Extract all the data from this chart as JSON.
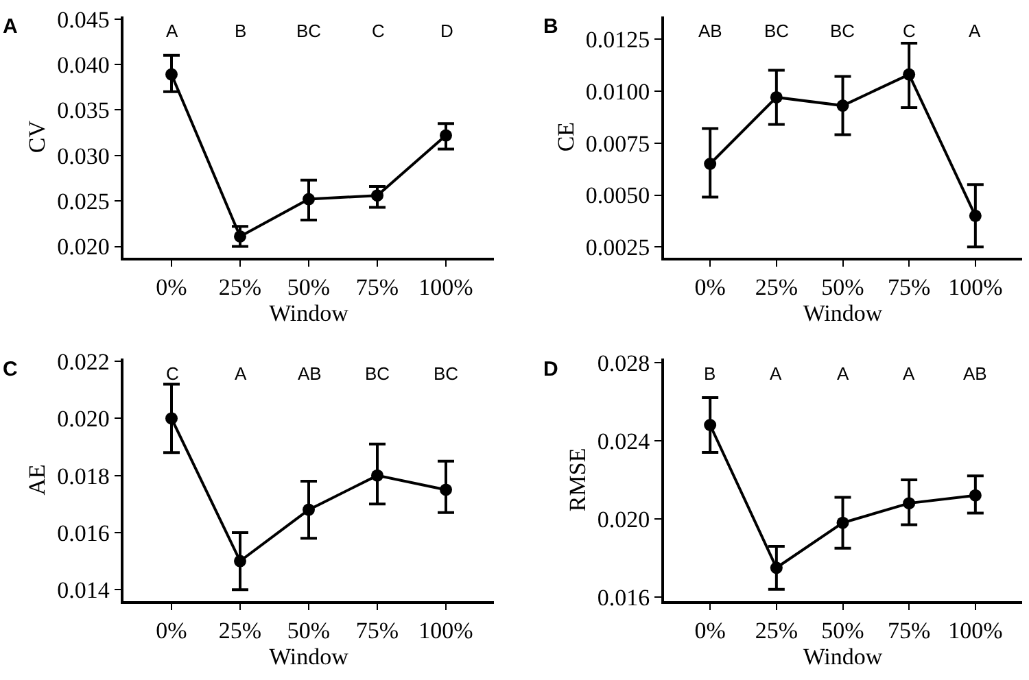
{
  "chart_data": [
    {
      "type": "line",
      "title": "A",
      "xlabel": "Window",
      "ylabel": "CV",
      "categories": [
        "0%",
        "25%",
        "50%",
        "75%",
        "100%"
      ],
      "series": [
        {
          "color": "#000000",
          "values": [
            0.0389,
            0.0211,
            0.0252,
            0.0256,
            0.0322
          ],
          "errors": [
            [
              0.037,
              0.041
            ],
            [
              0.02,
              0.0222
            ],
            [
              0.0229,
              0.0273
            ],
            [
              0.0243,
              0.0266
            ],
            [
              0.0307,
              0.0335
            ]
          ]
        }
      ],
      "ylim": [
        0.0188,
        0.0453
      ],
      "yticks": [
        {
          "value": 0.02,
          "label": "0.020"
        },
        {
          "value": 0.025,
          "label": "0.025"
        },
        {
          "value": 0.03,
          "label": "0.030"
        },
        {
          "value": 0.035,
          "label": "0.035"
        },
        {
          "value": 0.04,
          "label": "0.040"
        },
        {
          "value": 0.045,
          "label": "0.045"
        }
      ],
      "marker": "circle",
      "line_style": "solid",
      "annotations": [
        "A",
        "B",
        "BC",
        "C",
        "D"
      ]
    },
    {
      "type": "line",
      "title": "B",
      "xlabel": "Window",
      "ylabel": "CE",
      "categories": [
        "0%",
        "25%",
        "50%",
        "75%",
        "100%"
      ],
      "series": [
        {
          "color": "#000000",
          "values": [
            0.0065,
            0.0097,
            0.0093,
            0.0108,
            0.004
          ],
          "errors": [
            [
              0.0049,
              0.0082
            ],
            [
              0.0084,
              0.011
            ],
            [
              0.0079,
              0.0107
            ],
            [
              0.0092,
              0.0123
            ],
            [
              0.0025,
              0.0055
            ]
          ]
        }
      ],
      "ylim": [
        0.002,
        0.0136
      ],
      "yticks": [
        {
          "value": 0.0025,
          "label": "0.0025"
        },
        {
          "value": 0.005,
          "label": "0.0050"
        },
        {
          "value": 0.0075,
          "label": "0.0075"
        },
        {
          "value": 0.01,
          "label": "0.0100"
        },
        {
          "value": 0.0125,
          "label": "0.0125"
        }
      ],
      "marker": "circle",
      "line_style": "solid",
      "annotations": [
        "AB",
        "BC",
        "BC",
        "C",
        "A"
      ]
    },
    {
      "type": "line",
      "title": "C",
      "xlabel": "Window",
      "ylabel": "AE",
      "categories": [
        "0%",
        "25%",
        "50%",
        "75%",
        "100%"
      ],
      "series": [
        {
          "color": "#000000",
          "values": [
            0.02,
            0.015,
            0.0168,
            0.018,
            0.0175
          ],
          "errors": [
            [
              0.0188,
              0.0212
            ],
            [
              0.014,
              0.016
            ],
            [
              0.0158,
              0.0178
            ],
            [
              0.017,
              0.0191
            ],
            [
              0.0167,
              0.0185
            ]
          ]
        }
      ],
      "ylim": [
        0.0136,
        0.0221
      ],
      "yticks": [
        {
          "value": 0.014,
          "label": "0.014"
        },
        {
          "value": 0.016,
          "label": "0.016"
        },
        {
          "value": 0.018,
          "label": "0.018"
        },
        {
          "value": 0.02,
          "label": "0.020"
        },
        {
          "value": 0.022,
          "label": "0.022"
        }
      ],
      "marker": "circle",
      "line_style": "solid",
      "annotations": [
        "C",
        "A",
        "AB",
        "BC",
        "BC"
      ]
    },
    {
      "type": "line",
      "title": "D",
      "xlabel": "Window",
      "ylabel": "RMSE",
      "categories": [
        "0%",
        "25%",
        "50%",
        "75%",
        "100%"
      ],
      "series": [
        {
          "color": "#000000",
          "values": [
            0.0248,
            0.0175,
            0.0198,
            0.0208,
            0.0212
          ],
          "errors": [
            [
              0.0234,
              0.0262
            ],
            [
              0.0164,
              0.0186
            ],
            [
              0.0185,
              0.0211
            ],
            [
              0.0197,
              0.022
            ],
            [
              0.0203,
              0.0222
            ]
          ]
        }
      ],
      "ylim": [
        0.0158,
        0.0282
      ],
      "yticks": [
        {
          "value": 0.016,
          "label": "0.016"
        },
        {
          "value": 0.02,
          "label": "0.020"
        },
        {
          "value": 0.024,
          "label": "0.024"
        },
        {
          "value": 0.028,
          "label": "0.028"
        }
      ],
      "marker": "circle",
      "line_style": "solid",
      "annotations": [
        "B",
        "A",
        "A",
        "A",
        "AB"
      ]
    }
  ]
}
